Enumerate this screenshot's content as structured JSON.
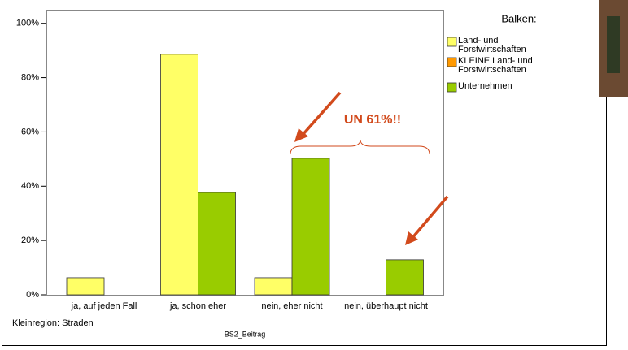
{
  "chart_data": {
    "type": "bar",
    "categories": [
      "ja, auf jeden Fall",
      "ja, schon eher",
      "nein, eher nicht",
      "nein, überhaupt nicht"
    ],
    "series": [
      {
        "name": "Land- und Forstwirtschaften",
        "color": "#ffff66",
        "values": [
          6.3,
          88.6,
          6.3,
          null
        ]
      },
      {
        "name": "KLEINE Land- und Forstwirtschaften",
        "color": "#ff9900",
        "values": [
          null,
          null,
          null,
          null
        ]
      },
      {
        "name": "Unternehmen",
        "color": "#99cc00",
        "values": [
          0,
          37.7,
          50.3,
          12.9
        ]
      }
    ],
    "ylim": [
      0,
      105
    ],
    "yticks": [
      {
        "value": 0,
        "label": "0%"
      },
      {
        "value": 20,
        "label": "20%"
      },
      {
        "value": 40,
        "label": "40%"
      },
      {
        "value": 60,
        "label": "60%"
      },
      {
        "value": 80,
        "label": "80%"
      },
      {
        "value": 100,
        "label": "100%"
      }
    ],
    "legend_title": "Balken:",
    "xlabel": "BS2_Beitrag",
    "footnote": "Kleinregion: Straden",
    "annotation": "UN 61%!!"
  }
}
